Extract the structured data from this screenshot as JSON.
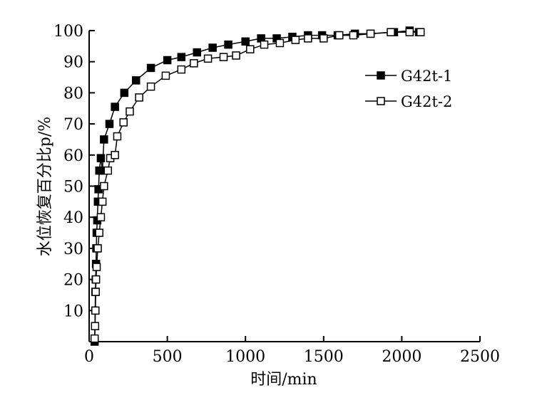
{
  "chart_data": {
    "type": "line",
    "xlabel": "时间/min",
    "ylabel": "水位恢复百分比p/%",
    "xlim": [
      0,
      2500
    ],
    "ylim": [
      0,
      100
    ],
    "xticks": [
      0,
      500,
      1000,
      1500,
      2000,
      2500
    ],
    "yticks": [
      10,
      20,
      30,
      40,
      50,
      60,
      70,
      80,
      90,
      100
    ],
    "grid": false,
    "legend_position": "upper-right",
    "series": [
      {
        "name": "G42t-1",
        "marker": "filled-square",
        "color": "#000000",
        "points": [
          [
            35,
            0
          ],
          [
            40,
            16
          ],
          [
            42,
            20
          ],
          [
            44,
            25
          ],
          [
            46,
            30
          ],
          [
            48,
            35
          ],
          [
            52,
            39
          ],
          [
            56,
            45
          ],
          [
            60,
            49
          ],
          [
            65,
            55
          ],
          [
            75,
            59
          ],
          [
            85,
            55
          ],
          [
            95,
            65
          ],
          [
            130,
            70
          ],
          [
            165,
            75.5
          ],
          [
            225,
            80
          ],
          [
            300,
            84
          ],
          [
            395,
            88
          ],
          [
            500,
            90.5
          ],
          [
            590,
            91.5
          ],
          [
            690,
            93
          ],
          [
            790,
            94.5
          ],
          [
            890,
            95.5
          ],
          [
            1000,
            96.5
          ],
          [
            1100,
            97.5
          ],
          [
            1200,
            97.5
          ],
          [
            1300,
            98
          ],
          [
            1400,
            98.5
          ],
          [
            1490,
            98.5
          ],
          [
            1590,
            98.5
          ],
          [
            1700,
            99
          ],
          [
            1800,
            99
          ],
          [
            1950,
            99.5
          ],
          [
            2050,
            100
          ],
          [
            2110,
            99.5
          ]
        ]
      },
      {
        "name": "G42t-2",
        "marker": "open-square",
        "color": "#000000",
        "points": [
          [
            35,
            1
          ],
          [
            38,
            5
          ],
          [
            40,
            10
          ],
          [
            42,
            16
          ],
          [
            44,
            20
          ],
          [
            48,
            24
          ],
          [
            55,
            30
          ],
          [
            65,
            35
          ],
          [
            75,
            40
          ],
          [
            85,
            45
          ],
          [
            95,
            50
          ],
          [
            120,
            55
          ],
          [
            135,
            59
          ],
          [
            165,
            60
          ],
          [
            180,
            66
          ],
          [
            220,
            70.5
          ],
          [
            260,
            74
          ],
          [
            320,
            78.5
          ],
          [
            395,
            82
          ],
          [
            490,
            85.5
          ],
          [
            590,
            87.5
          ],
          [
            670,
            89.5
          ],
          [
            760,
            91
          ],
          [
            860,
            91.5
          ],
          [
            940,
            92
          ],
          [
            1030,
            94
          ],
          [
            1120,
            95.5
          ],
          [
            1220,
            96
          ],
          [
            1320,
            97
          ],
          [
            1400,
            97.5
          ],
          [
            1500,
            97.5
          ],
          [
            1600,
            98.5
          ],
          [
            1690,
            98.5
          ],
          [
            1800,
            99
          ],
          [
            1930,
            99.5
          ],
          [
            2050,
            99.5
          ],
          [
            2120,
            99.5
          ]
        ]
      }
    ]
  }
}
